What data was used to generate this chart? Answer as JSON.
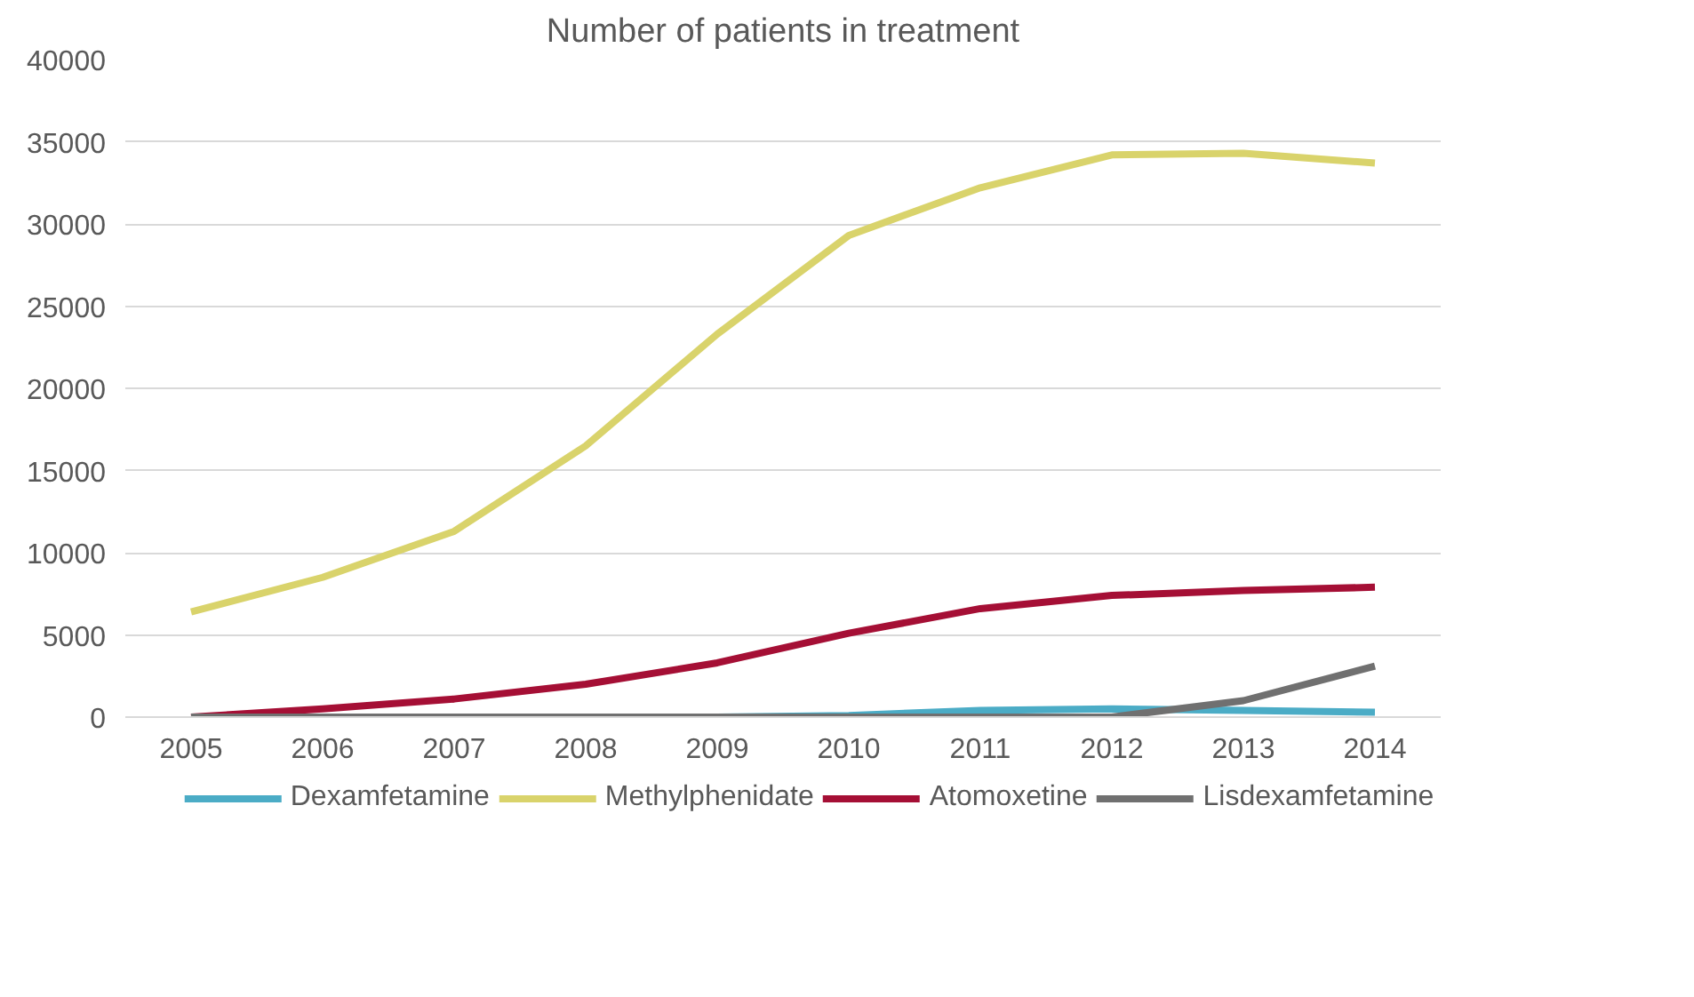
{
  "chart_data": {
    "type": "line",
    "title": "Number of patients in treatment",
    "categories": [
      "2005",
      "2006",
      "2007",
      "2008",
      "2009",
      "2010",
      "2011",
      "2012",
      "2013",
      "2014"
    ],
    "series": [
      {
        "name": "Dexamfetamine",
        "color": "#4bacc6",
        "values": [
          null,
          null,
          null,
          null,
          0,
          100,
          400,
          500,
          400,
          300
        ]
      },
      {
        "name": "Methylphenidate",
        "color": "#d9d36b",
        "values": [
          6400,
          8500,
          11300,
          16500,
          23300,
          29300,
          32200,
          34200,
          34300,
          33700
        ]
      },
      {
        "name": "Atomoxetine",
        "color": "#a50f35",
        "values": [
          0,
          500,
          1100,
          2000,
          3300,
          5100,
          6600,
          7400,
          7700,
          7900
        ]
      },
      {
        "name": "Lisdexamfetamine",
        "color": "#707070",
        "values": [
          0,
          0,
          0,
          0,
          0,
          0,
          0,
          0,
          1000,
          3100
        ]
      }
    ],
    "ylim": [
      0,
      40000
    ],
    "yticks": [
      0,
      5000,
      10000,
      15000,
      20000,
      25000,
      30000,
      35000,
      40000
    ],
    "grid": "y",
    "legend": "bottom",
    "marker": "none",
    "line_style": "solid"
  }
}
